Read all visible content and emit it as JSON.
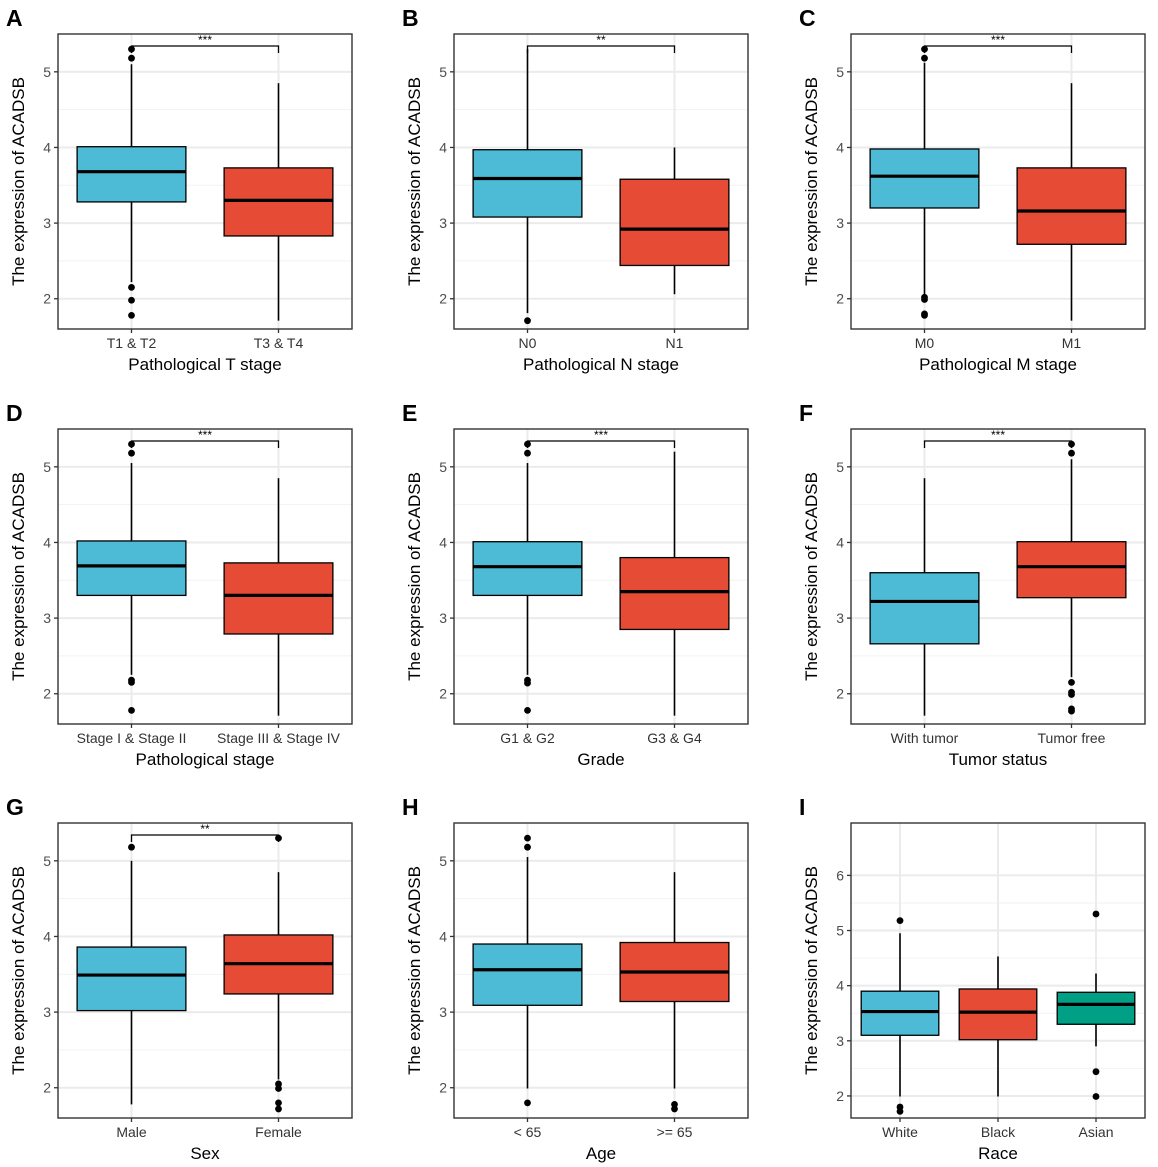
{
  "figure": {
    "ylabel": "The expression of ACADSB",
    "colors": {
      "blue": "#4DBBD5",
      "red": "#E64B35",
      "teal": "#00A087"
    }
  },
  "chart_data": [
    {
      "panel": "A",
      "type": "box",
      "xlabel": "Pathological T stage",
      "ylabel": "The expression of ACADSB",
      "yticks": [
        2,
        3,
        4,
        5
      ],
      "ylim": [
        1.6,
        5.5
      ],
      "groups": [
        {
          "name": "T1 & T2",
          "color": "#4DBBD5",
          "q1": 3.28,
          "median": 3.68,
          "q3": 4.01,
          "whisker_low": 2.22,
          "whisker_high": 5.1,
          "outliers": [
            5.3,
            5.18,
            2.15,
            1.98,
            1.78
          ]
        },
        {
          "name": "T3 & T4",
          "color": "#E64B35",
          "q1": 2.83,
          "median": 3.3,
          "q3": 3.73,
          "whisker_low": 1.71,
          "whisker_high": 4.85,
          "outliers": []
        }
      ],
      "significance": [
        {
          "from": 0,
          "to": 1,
          "label": "***"
        }
      ]
    },
    {
      "panel": "B",
      "type": "box",
      "xlabel": "Pathological N stage",
      "ylabel": "The expression of ACADSB",
      "yticks": [
        2,
        3,
        4,
        5
      ],
      "ylim": [
        1.6,
        5.5
      ],
      "groups": [
        {
          "name": "N0",
          "color": "#4DBBD5",
          "q1": 3.08,
          "median": 3.59,
          "q3": 3.97,
          "whisker_low": 1.81,
          "whisker_high": 5.3,
          "outliers": [
            1.71
          ]
        },
        {
          "name": "N1",
          "color": "#E64B35",
          "q1": 2.44,
          "median": 2.92,
          "q3": 3.58,
          "whisker_low": 2.06,
          "whisker_high": 4.0,
          "outliers": []
        }
      ],
      "significance": [
        {
          "from": 0,
          "to": 1,
          "label": "**"
        }
      ]
    },
    {
      "panel": "C",
      "type": "box",
      "xlabel": "Pathological M stage",
      "ylabel": "The expression of ACADSB",
      "yticks": [
        2,
        3,
        4,
        5
      ],
      "ylim": [
        1.6,
        5.5
      ],
      "groups": [
        {
          "name": "M0",
          "color": "#4DBBD5",
          "q1": 3.2,
          "median": 3.62,
          "q3": 3.98,
          "whisker_low": 2.05,
          "whisker_high": 5.12,
          "outliers": [
            5.3,
            5.18,
            2.02,
            1.99,
            1.8,
            1.78
          ]
        },
        {
          "name": "M1",
          "color": "#E64B35",
          "q1": 2.72,
          "median": 3.16,
          "q3": 3.73,
          "whisker_low": 1.71,
          "whisker_high": 4.85,
          "outliers": []
        }
      ],
      "significance": [
        {
          "from": 0,
          "to": 1,
          "label": "***"
        }
      ]
    },
    {
      "panel": "D",
      "type": "box",
      "xlabel": "Pathological  stage",
      "ylabel": "The expression of ACADSB",
      "yticks": [
        2,
        3,
        4,
        5
      ],
      "ylim": [
        1.6,
        5.5
      ],
      "groups": [
        {
          "name": "Stage I & Stage II",
          "color": "#4DBBD5",
          "q1": 3.3,
          "median": 3.69,
          "q3": 4.02,
          "whisker_low": 2.25,
          "whisker_high": 5.05,
          "outliers": [
            5.3,
            5.18,
            2.18,
            2.15,
            1.78
          ]
        },
        {
          "name": "Stage III & Stage IV",
          "color": "#E64B35",
          "q1": 2.79,
          "median": 3.3,
          "q3": 3.73,
          "whisker_low": 1.71,
          "whisker_high": 4.85,
          "outliers": []
        }
      ],
      "significance": [
        {
          "from": 0,
          "to": 1,
          "label": "***"
        }
      ]
    },
    {
      "panel": "E",
      "type": "box",
      "xlabel": "Grade",
      "ylabel": "The expression of ACADSB",
      "yticks": [
        2,
        3,
        4,
        5
      ],
      "ylim": [
        1.6,
        5.5
      ],
      "groups": [
        {
          "name": "G1 & G2",
          "color": "#4DBBD5",
          "q1": 3.3,
          "median": 3.68,
          "q3": 4.01,
          "whisker_low": 2.25,
          "whisker_high": 5.05,
          "outliers": [
            5.3,
            5.18,
            2.18,
            2.14,
            1.78
          ]
        },
        {
          "name": "G3 & G4",
          "color": "#E64B35",
          "q1": 2.85,
          "median": 3.35,
          "q3": 3.8,
          "whisker_low": 1.71,
          "whisker_high": 5.2,
          "outliers": []
        }
      ],
      "significance": [
        {
          "from": 0,
          "to": 1,
          "label": "***"
        }
      ]
    },
    {
      "panel": "F",
      "type": "box",
      "xlabel": "Tumor status",
      "ylabel": "The expression of ACADSB",
      "yticks": [
        2,
        3,
        4,
        5
      ],
      "ylim": [
        1.6,
        5.5
      ],
      "groups": [
        {
          "name": "With tumor",
          "color": "#4DBBD5",
          "q1": 2.66,
          "median": 3.22,
          "q3": 3.6,
          "whisker_low": 1.71,
          "whisker_high": 4.85,
          "outliers": []
        },
        {
          "name": "Tumor free",
          "color": "#E64B35",
          "q1": 3.27,
          "median": 3.68,
          "q3": 4.01,
          "whisker_low": 2.22,
          "whisker_high": 5.1,
          "outliers": [
            5.3,
            5.18,
            2.15,
            2.02,
            1.99,
            1.8,
            1.77
          ]
        }
      ],
      "significance": [
        {
          "from": 0,
          "to": 1,
          "label": "***"
        }
      ]
    },
    {
      "panel": "G",
      "type": "box",
      "xlabel": "Sex",
      "ylabel": "The expression of ACADSB",
      "yticks": [
        2,
        3,
        4,
        5
      ],
      "ylim": [
        1.6,
        5.5
      ],
      "groups": [
        {
          "name": "Male",
          "color": "#4DBBD5",
          "q1": 3.02,
          "median": 3.49,
          "q3": 3.86,
          "whisker_low": 1.78,
          "whisker_high": 5.0,
          "outliers": [
            5.18
          ]
        },
        {
          "name": "Female",
          "color": "#E64B35",
          "q1": 3.24,
          "median": 3.64,
          "q3": 4.02,
          "whisker_low": 2.11,
          "whisker_high": 4.85,
          "outliers": [
            5.3,
            2.05,
            1.99,
            1.8,
            1.72
          ]
        }
      ],
      "significance": [
        {
          "from": 0,
          "to": 1,
          "label": "**"
        }
      ]
    },
    {
      "panel": "H",
      "type": "box",
      "xlabel": "Age",
      "ylabel": "The expression of ACADSB",
      "yticks": [
        2,
        3,
        4,
        5
      ],
      "ylim": [
        1.6,
        5.5
      ],
      "groups": [
        {
          "name": "< 65",
          "color": "#4DBBD5",
          "q1": 3.09,
          "median": 3.56,
          "q3": 3.9,
          "whisker_low": 1.99,
          "whisker_high": 5.05,
          "outliers": [
            5.3,
            5.18,
            1.8
          ]
        },
        {
          "name": ">= 65",
          "color": "#E64B35",
          "q1": 3.14,
          "median": 3.53,
          "q3": 3.92,
          "whisker_low": 1.99,
          "whisker_high": 4.85,
          "outliers": [
            1.78,
            1.72
          ]
        }
      ],
      "significance": []
    },
    {
      "panel": "I",
      "type": "box",
      "xlabel": "Race",
      "ylabel": "The expression of ACADSB",
      "yticks": [
        2,
        3,
        4,
        5,
        6
      ],
      "ylim": [
        1.6,
        6.95
      ],
      "groups": [
        {
          "name": "White",
          "color": "#4DBBD5",
          "q1": 3.1,
          "median": 3.53,
          "q3": 3.9,
          "whisker_low": 1.99,
          "whisker_high": 4.95,
          "outliers": [
            5.18,
            1.8,
            1.72
          ]
        },
        {
          "name": "Black",
          "color": "#E64B35",
          "q1": 3.02,
          "median": 3.52,
          "q3": 3.94,
          "whisker_low": 1.99,
          "whisker_high": 4.53,
          "outliers": []
        },
        {
          "name": "Asian",
          "color": "#00A087",
          "q1": 3.3,
          "median": 3.66,
          "q3": 3.88,
          "whisker_low": 2.9,
          "whisker_high": 4.22,
          "outliers": [
            5.3,
            2.44,
            1.99
          ]
        }
      ],
      "significance": []
    }
  ]
}
